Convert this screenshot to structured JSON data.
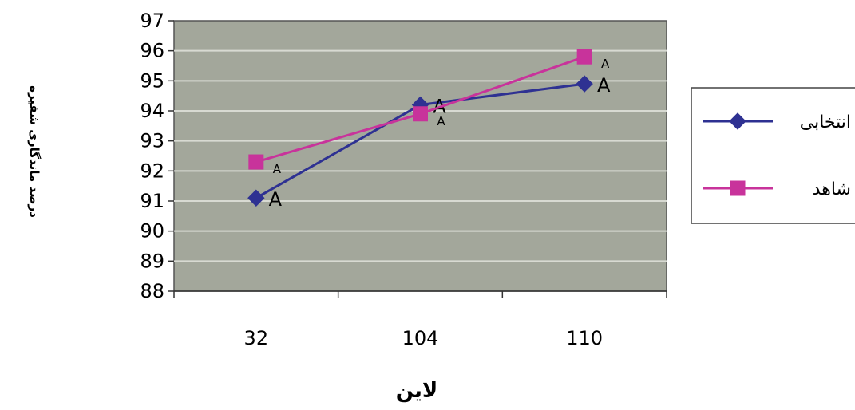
{
  "chart_data": {
    "type": "line",
    "categories": [
      "32",
      "104",
      "110"
    ],
    "series": [
      {
        "name": "انتخابی",
        "values": [
          91.1,
          94.2,
          94.9
        ],
        "labels": [
          "A",
          "A",
          "A"
        ],
        "color": "#2e3192",
        "marker": "diamond"
      },
      {
        "name": "شاهد",
        "values": [
          92.3,
          93.9,
          95.8
        ],
        "labels": [
          "A",
          "A",
          "A"
        ],
        "color": "#c8339b",
        "marker": "square"
      }
    ],
    "xlabel": "لاین",
    "ylabel": "درصد ماندگاری شفیره",
    "ylim": [
      88,
      97
    ],
    "yticks": [
      88,
      89,
      90,
      91,
      92,
      93,
      94,
      95,
      96,
      97
    ],
    "grid": true,
    "plot_background": "#a3a79b",
    "legend_position": "right"
  }
}
